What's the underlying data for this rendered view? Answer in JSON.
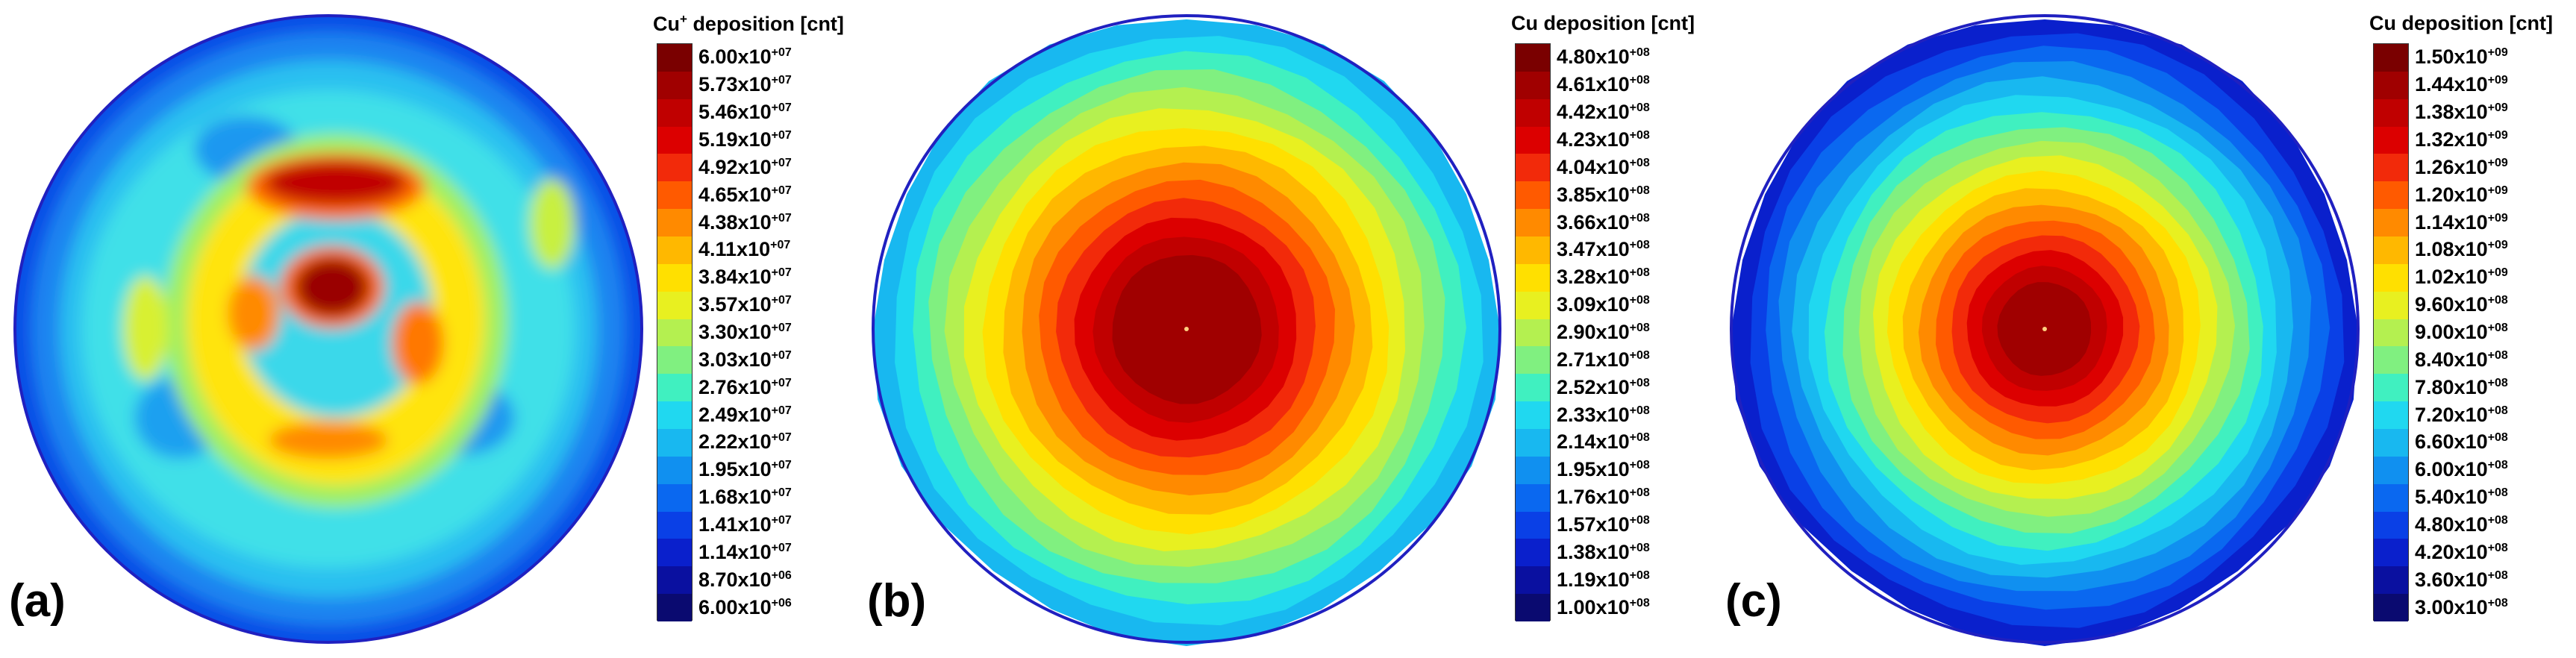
{
  "panels": [
    {
      "id": "a",
      "label": "(a)",
      "colorbar_title_main": "Cu",
      "colorbar_title_sup": "+",
      "colorbar_title_rest": " deposition [cnt]",
      "ticks": [
        [
          "6.00x10",
          "+07"
        ],
        [
          "5.73x10",
          "+07"
        ],
        [
          "5.46x10",
          "+07"
        ],
        [
          "5.19x10",
          "+07"
        ],
        [
          "4.92x10",
          "+07"
        ],
        [
          "4.65x10",
          "+07"
        ],
        [
          "4.38x10",
          "+07"
        ],
        [
          "4.11x10",
          "+07"
        ],
        [
          "3.84x10",
          "+07"
        ],
        [
          "3.57x10",
          "+07"
        ],
        [
          "3.30x10",
          "+07"
        ],
        [
          "3.03x10",
          "+07"
        ],
        [
          "2.76x10",
          "+07"
        ],
        [
          "2.49x10",
          "+07"
        ],
        [
          "2.22x10",
          "+07"
        ],
        [
          "1.95x10",
          "+07"
        ],
        [
          "1.68x10",
          "+07"
        ],
        [
          "1.41x10",
          "+07"
        ],
        [
          "1.14x10",
          "+07"
        ],
        [
          "8.70x10",
          "+06"
        ],
        [
          "6.00x10",
          "+06"
        ]
      ]
    },
    {
      "id": "b",
      "label": "(b)",
      "colorbar_title_main": "Cu deposition [cnt]",
      "colorbar_title_sup": "",
      "colorbar_title_rest": "",
      "ticks": [
        [
          "4.80x10",
          "+08"
        ],
        [
          "4.61x10",
          "+08"
        ],
        [
          "4.42x10",
          "+08"
        ],
        [
          "4.23x10",
          "+08"
        ],
        [
          "4.04x10",
          "+08"
        ],
        [
          "3.85x10",
          "+08"
        ],
        [
          "3.66x10",
          "+08"
        ],
        [
          "3.47x10",
          "+08"
        ],
        [
          "3.28x10",
          "+08"
        ],
        [
          "3.09x10",
          "+08"
        ],
        [
          "2.90x10",
          "+08"
        ],
        [
          "2.71x10",
          "+08"
        ],
        [
          "2.52x10",
          "+08"
        ],
        [
          "2.33x10",
          "+08"
        ],
        [
          "2.14x10",
          "+08"
        ],
        [
          "1.95x10",
          "+08"
        ],
        [
          "1.76x10",
          "+08"
        ],
        [
          "1.57x10",
          "+08"
        ],
        [
          "1.38x10",
          "+08"
        ],
        [
          "1.19x10",
          "+08"
        ],
        [
          "1.00x10",
          "+08"
        ]
      ]
    },
    {
      "id": "c",
      "label": "(c)",
      "colorbar_title_main": "Cu deposition [cnt]",
      "colorbar_title_sup": "",
      "colorbar_title_rest": "",
      "ticks": [
        [
          "1.50x10",
          "+09"
        ],
        [
          "1.44x10",
          "+09"
        ],
        [
          "1.38x10",
          "+09"
        ],
        [
          "1.32x10",
          "+09"
        ],
        [
          "1.26x10",
          "+09"
        ],
        [
          "1.20x10",
          "+09"
        ],
        [
          "1.14x10",
          "+09"
        ],
        [
          "1.08x10",
          "+09"
        ],
        [
          "1.02x10",
          "+09"
        ],
        [
          "9.60x10",
          "+08"
        ],
        [
          "9.00x10",
          "+08"
        ],
        [
          "8.40x10",
          "+08"
        ],
        [
          "7.80x10",
          "+08"
        ],
        [
          "7.20x10",
          "+08"
        ],
        [
          "6.60x10",
          "+08"
        ],
        [
          "6.00x10",
          "+08"
        ],
        [
          "5.40x10",
          "+08"
        ],
        [
          "4.80x10",
          "+08"
        ],
        [
          "4.20x10",
          "+08"
        ],
        [
          "3.60x10",
          "+08"
        ],
        [
          "3.00x10",
          "+08"
        ]
      ]
    }
  ],
  "chart_data": [
    {
      "type": "heatmap",
      "title": "Cu+ deposition [cnt]",
      "panel": "(a)",
      "scale_min": 6000000,
      "scale_max": 60000000,
      "levels": [
        60000000,
        57300000,
        54600000,
        51900000,
        49200000,
        46500000,
        43800000,
        41100000,
        38400000,
        35700000,
        33000000,
        30300000,
        27600000,
        24900000,
        22200000,
        19500000,
        16800000,
        14100000,
        11400000,
        8700000,
        6000000
      ],
      "pattern": "irregular rings; maxima near top and center"
    },
    {
      "type": "heatmap",
      "title": "Cu deposition [cnt]",
      "panel": "(b)",
      "scale_min": 100000000,
      "scale_max": 480000000,
      "levels": [
        480000000,
        461000000,
        442000000,
        423000000,
        404000000,
        385000000,
        366000000,
        347000000,
        328000000,
        309000000,
        290000000,
        271000000,
        252000000,
        233000000,
        214000000,
        195000000,
        176000000,
        157000000,
        138000000,
        119000000,
        100000000
      ],
      "pattern": "concentric; maximum at center"
    },
    {
      "type": "heatmap",
      "title": "Cu deposition [cnt]",
      "panel": "(c)",
      "scale_min": 300000000,
      "scale_max": 1500000000,
      "levels": [
        1500000000,
        1440000000,
        1380000000,
        1320000000,
        1260000000,
        1200000000,
        1140000000,
        1080000000,
        1020000000,
        960000000,
        900000000,
        840000000,
        780000000,
        720000000,
        660000000,
        600000000,
        540000000,
        480000000,
        420000000,
        360000000,
        300000000
      ],
      "pattern": "concentric; maximum at center"
    }
  ],
  "colormap": [
    "#7a0000",
    "#a00000",
    "#c00000",
    "#dc0000",
    "#f22a0a",
    "#ff5a00",
    "#ff8a00",
    "#ffb800",
    "#ffe000",
    "#e8f020",
    "#b4f050",
    "#80f080",
    "#40f0c0",
    "#20d8f0",
    "#18b8f0",
    "#1090f0",
    "#0a68f0",
    "#0a40e6",
    "#0a20cc",
    "#0a10a0",
    "#0a0a70"
  ]
}
